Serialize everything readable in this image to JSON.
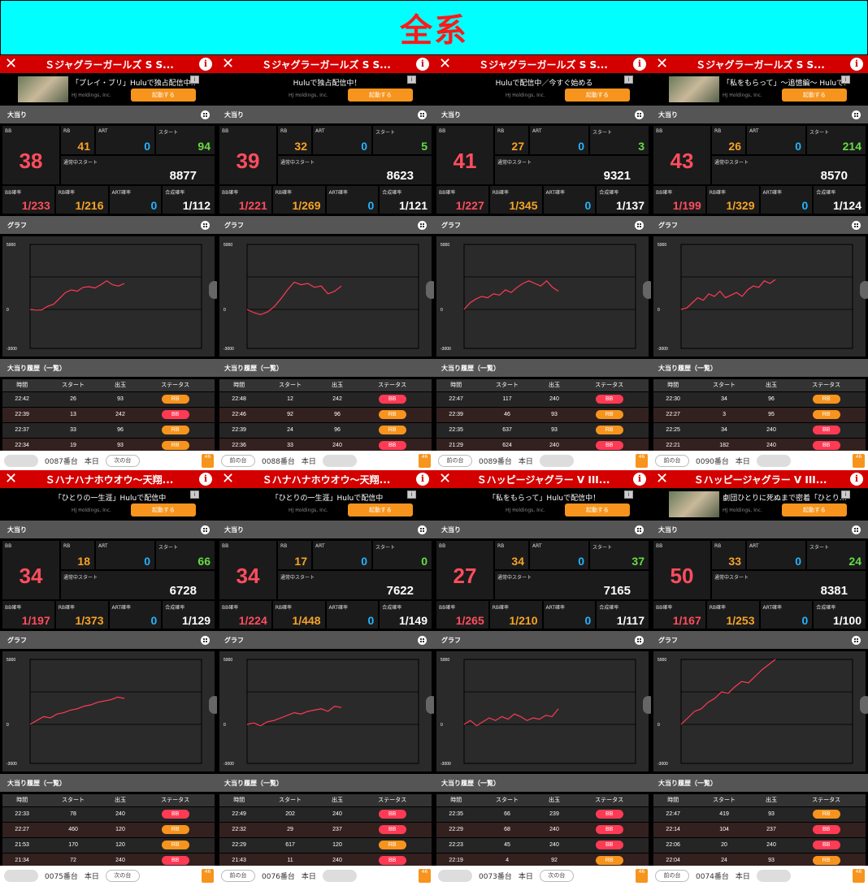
{
  "banner": "全系",
  "labels": {
    "oohit": "大当り",
    "graph": "グラフ",
    "history": "大当り履歴（一覧）",
    "bb": "BB",
    "rb": "RB",
    "art": "ART",
    "start": "スタート",
    "normal_start": "通常中スタート",
    "bb_rate": "BB確率",
    "rb_rate": "RB確率",
    "art_rate": "ART確率",
    "total_rate": "合成確率",
    "col_time": "時間",
    "col_start": "スタート",
    "col_out": "出玉",
    "col_status": "ステータス",
    "launch": "起動する",
    "corp": "HJ Holdings, Inc.",
    "prev": "前の台",
    "next": "次の台",
    "today": "本日",
    "y_max": "5000",
    "y_zero": "0",
    "y_min": "-3000",
    "app_badge": "46"
  },
  "panels": [
    {
      "title": "Ｓジャグラーガールズ S S...",
      "ad": "「プレイ・ブリ」Huluで独占配信中…",
      "ad_thumb": true,
      "bb": "38",
      "rb": "41",
      "art": "0",
      "start": "94",
      "normal_start": "8877",
      "bb_rate": "1/233",
      "rb_rate": "1/216",
      "art_rate": "0",
      "total_rate": "1/112",
      "machine": "0087番台",
      "prev_enabled": false,
      "graph": [
        0,
        -50,
        -30,
        250,
        400,
        850,
        1300,
        1500,
        1400,
        1700,
        1750,
        1650,
        1900,
        2200,
        1900,
        1800,
        2000
      ],
      "history": [
        [
          "22:42",
          "26",
          "93",
          "RB"
        ],
        [
          "22:39",
          "13",
          "242",
          "BB"
        ],
        [
          "22:37",
          "33",
          "96",
          "RB"
        ],
        [
          "22:34",
          "19",
          "93",
          "RB"
        ]
      ]
    },
    {
      "title": "Ｓジャグラーガールズ S S...",
      "ad": "Huluで独占配信中！",
      "ad_thumb": false,
      "bb": "39",
      "rb": "32",
      "art": "0",
      "start": "5",
      "normal_start": "8623",
      "bb_rate": "1/221",
      "rb_rate": "1/269",
      "art_rate": "0",
      "total_rate": "1/121",
      "machine": "0088番台",
      "prev_enabled": true,
      "graph": [
        0,
        -250,
        -400,
        -200,
        200,
        800,
        1500,
        2100,
        1900,
        2000,
        1700,
        1800,
        1200,
        1400,
        1800
      ],
      "history": [
        [
          "22:48",
          "12",
          "242",
          "BB"
        ],
        [
          "22:46",
          "92",
          "96",
          "RB"
        ],
        [
          "22:39",
          "24",
          "96",
          "RB"
        ],
        [
          "22:36",
          "33",
          "240",
          "BB"
        ]
      ]
    },
    {
      "title": "Ｓジャグラーガールズ S S...",
      "ad": "Huluで配信中／今すぐ始める",
      "ad_thumb": false,
      "bb": "41",
      "rb": "27",
      "art": "0",
      "start": "3",
      "normal_start": "9321",
      "bb_rate": "1/227",
      "rb_rate": "1/345",
      "art_rate": "0",
      "total_rate": "1/137",
      "machine": "0089番台",
      "prev_enabled": true,
      "graph": [
        0,
        500,
        800,
        1000,
        900,
        1200,
        1100,
        1500,
        1300,
        1700,
        2000,
        2200,
        2000,
        1800,
        2200,
        1700,
        1400
      ],
      "history": [
        [
          "22:47",
          "117",
          "240",
          "BB"
        ],
        [
          "22:39",
          "46",
          "93",
          "RB"
        ],
        [
          "22:35",
          "637",
          "93",
          "RB"
        ],
        [
          "21:29",
          "624",
          "240",
          "BB"
        ]
      ]
    },
    {
      "title": "Ｓジャグラーガールズ S S...",
      "ad": "「私をもらって」〜追憶編〜 Huluで…",
      "ad_thumb": true,
      "bb": "43",
      "rb": "26",
      "art": "0",
      "start": "214",
      "normal_start": "8570",
      "bb_rate": "1/199",
      "rb_rate": "1/329",
      "art_rate": "0",
      "total_rate": "1/124",
      "machine": "0090番台",
      "prev_enabled": true,
      "graph": [
        0,
        100,
        500,
        900,
        700,
        1200,
        1000,
        1400,
        900,
        1100,
        1300,
        1000,
        1500,
        1800,
        1700,
        2200,
        2000,
        2300
      ],
      "history": [
        [
          "22:30",
          "34",
          "96",
          "RB"
        ],
        [
          "22:27",
          "3",
          "95",
          "RB"
        ],
        [
          "22:25",
          "34",
          "240",
          "BB"
        ],
        [
          "22:21",
          "182",
          "240",
          "BB"
        ]
      ]
    },
    {
      "title": "Ｓハナハナホウオウ〜天翔...",
      "ad": "「ひとりの一生涯」Huluで配信中",
      "ad_thumb": false,
      "bb": "34",
      "rb": "18",
      "art": "0",
      "start": "66",
      "normal_start": "6728",
      "bb_rate": "1/197",
      "rb_rate": "1/373",
      "art_rate": "0",
      "total_rate": "1/129",
      "machine": "0075番台",
      "prev_enabled": false,
      "graph": [
        0,
        300,
        600,
        500,
        800,
        900,
        1100,
        1200,
        1400,
        1500,
        1700,
        1800,
        1900,
        2100,
        2000
      ],
      "history": [
        [
          "22:33",
          "78",
          "240",
          "BB"
        ],
        [
          "22:27",
          "460",
          "120",
          "RB"
        ],
        [
          "21:53",
          "170",
          "120",
          "RB"
        ],
        [
          "21:34",
          "72",
          "240",
          "BB"
        ]
      ]
    },
    {
      "title": "Ｓハナハナホウオウ〜天翔...",
      "ad": "「ひとりの一生涯」Huluで配信中",
      "ad_thumb": false,
      "bb": "34",
      "rb": "17",
      "art": "0",
      "start": "0",
      "normal_start": "7622",
      "bb_rate": "1/224",
      "rb_rate": "1/448",
      "art_rate": "0",
      "total_rate": "1/149",
      "machine": "0076番台",
      "prev_enabled": true,
      "graph": [
        0,
        100,
        -100,
        200,
        300,
        500,
        700,
        900,
        800,
        1000,
        1100,
        1200,
        1000,
        1400,
        1300
      ],
      "history": [
        [
          "22:49",
          "202",
          "240",
          "BB"
        ],
        [
          "22:32",
          "29",
          "237",
          "BB"
        ],
        [
          "22:29",
          "617",
          "120",
          "RB"
        ],
        [
          "21:43",
          "11",
          "240",
          "BB"
        ]
      ]
    },
    {
      "title": "Ｓハッピージャグラー V III...",
      "ad": "「私をもらって」Huluで配信中！",
      "ad_thumb": false,
      "bb": "27",
      "rb": "34",
      "art": "0",
      "start": "37",
      "normal_start": "7165",
      "bb_rate": "1/265",
      "rb_rate": "1/210",
      "art_rate": "0",
      "total_rate": "1/117",
      "machine": "0073番台",
      "prev_enabled": false,
      "graph": [
        0,
        300,
        -100,
        200,
        500,
        300,
        600,
        400,
        800,
        600,
        300,
        500,
        400,
        700,
        600,
        1200
      ],
      "history": [
        [
          "22:35",
          "66",
          "239",
          "BB"
        ],
        [
          "22:29",
          "68",
          "240",
          "BB"
        ],
        [
          "22:23",
          "45",
          "240",
          "BB"
        ],
        [
          "22:19",
          "4",
          "92",
          "RB"
        ]
      ]
    },
    {
      "title": "Ｓハッピージャグラー V III...",
      "ad": "劇団ひとりに死ぬまで密着「ひとり…",
      "ad_thumb": true,
      "bb": "50",
      "rb": "33",
      "art": "0",
      "start": "24",
      "normal_start": "8381",
      "bb_rate": "1/167",
      "rb_rate": "1/253",
      "art_rate": "0",
      "total_rate": "1/100",
      "machine": "0074番台",
      "prev_enabled": true,
      "graph": [
        0,
        500,
        1000,
        1200,
        1700,
        2000,
        2500,
        2400,
        2900,
        3300,
        3200,
        3700,
        4200,
        4600,
        5000
      ],
      "history": [
        [
          "22:47",
          "419",
          "93",
          "RB"
        ],
        [
          "22:14",
          "104",
          "237",
          "BB"
        ],
        [
          "22:06",
          "20",
          "240",
          "BB"
        ],
        [
          "22:04",
          "24",
          "93",
          "RB"
        ]
      ]
    }
  ]
}
